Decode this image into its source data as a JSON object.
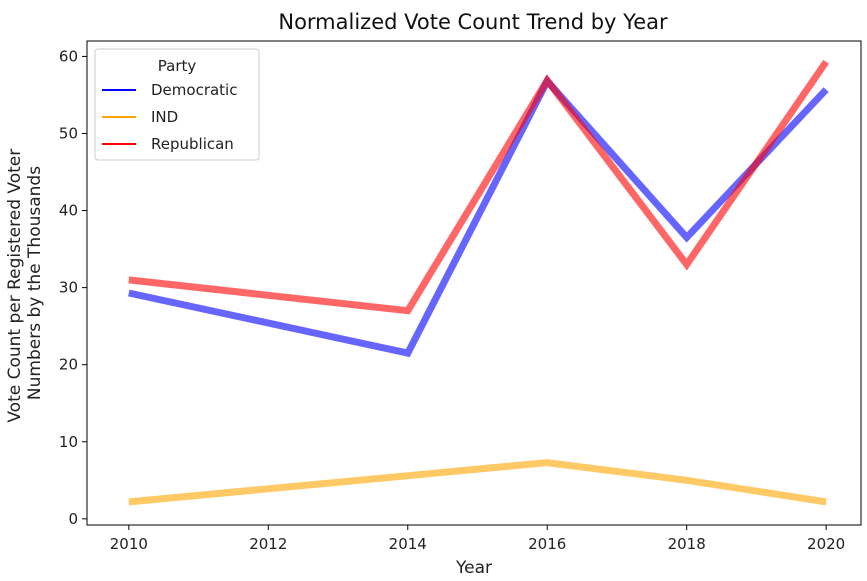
{
  "chart_data": {
    "type": "line",
    "title": "Normalized Vote Count Trend by Year",
    "xlabel": "Year",
    "ylabel_lines": [
      "Vote Count per Registered Voter",
      "Numbers by the Thousands"
    ],
    "x": [
      2010,
      2014,
      2016,
      2018,
      2020
    ],
    "xlim": [
      2009.4,
      2020.5
    ],
    "ylim": [
      -0.8,
      62
    ],
    "xticks": [
      2010,
      2012,
      2014,
      2016,
      2018,
      2020
    ],
    "yticks": [
      0,
      10,
      20,
      30,
      40,
      50,
      60
    ],
    "grid": false,
    "legend": {
      "title": "Party",
      "placement": "top-left"
    },
    "series": [
      {
        "name": "Democratic",
        "color": "#0000ff",
        "values": [
          29.3,
          21.5,
          56.8,
          36.5,
          55.7
        ]
      },
      {
        "name": "IND",
        "color": "#ffa500",
        "values": [
          2.2,
          5.6,
          7.3,
          5.0,
          2.2
        ]
      },
      {
        "name": "Republican",
        "color": "#ff0000",
        "values": [
          31.0,
          27.0,
          56.9,
          33.0,
          59.3
        ]
      }
    ]
  }
}
